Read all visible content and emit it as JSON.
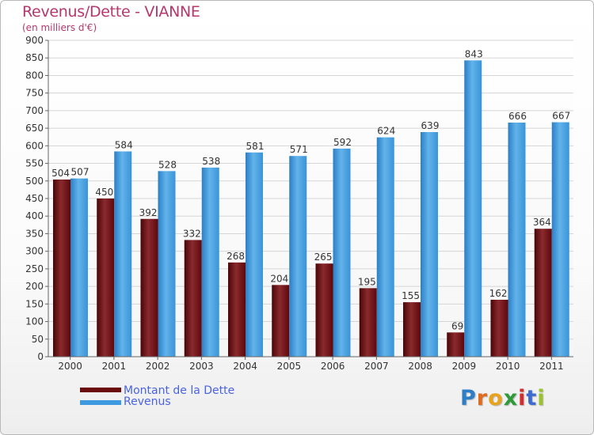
{
  "title": "Revenus/Dette - VIANNE",
  "subtitle": "(en milliers d'€)",
  "legend": [
    {
      "label": "Montant de la Dette",
      "color": "#6b0a0e"
    },
    {
      "label": "Revenus",
      "color": "#3e9ae0"
    }
  ],
  "logo": {
    "letters": [
      "P",
      "r",
      "o",
      "x",
      "i",
      "t",
      "i"
    ],
    "colors": [
      "#2e7ec7",
      "#e06a1e",
      "#e8a21c",
      "#2f9a3a",
      "#d42c2c",
      "#3f6bd0",
      "#9ac22a"
    ]
  },
  "chart_data": {
    "type": "bar",
    "categories": [
      "2000",
      "2001",
      "2002",
      "2003",
      "2004",
      "2005",
      "2006",
      "2007",
      "2008",
      "2009",
      "2010",
      "2011"
    ],
    "series": [
      {
        "name": "Montant de la Dette",
        "values": [
          504,
          450,
          392,
          332,
          268,
          204,
          265,
          195,
          155,
          69,
          162,
          364
        ]
      },
      {
        "name": "Revenus",
        "values": [
          507,
          584,
          528,
          538,
          581,
          571,
          592,
          624,
          639,
          843,
          666,
          667
        ]
      }
    ],
    "ylim": [
      0,
      900
    ],
    "yticks": [
      0,
      50,
      100,
      150,
      200,
      250,
      300,
      350,
      400,
      450,
      500,
      550,
      600,
      650,
      700,
      750,
      800,
      850,
      900
    ],
    "grid": true,
    "xlabel": "",
    "ylabel": ""
  }
}
